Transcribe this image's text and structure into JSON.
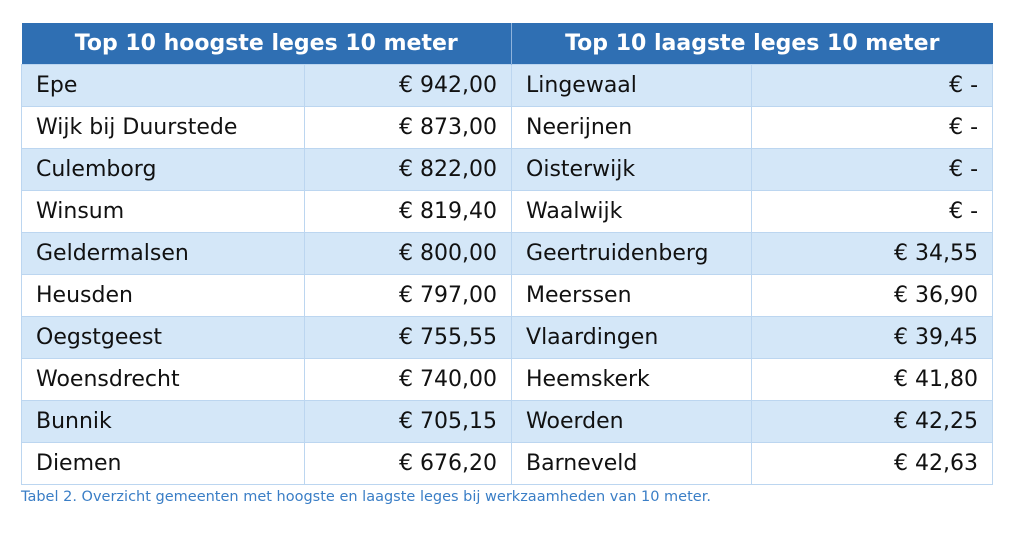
{
  "table": {
    "headers": [
      "Top 10 hoogste leges 10 meter",
      "Top 10 laagste leges 10 meter"
    ],
    "rows": [
      {
        "high_name": "Epe",
        "high_value": "€ 942,00",
        "low_name": "Lingewaal",
        "low_value": "€ -"
      },
      {
        "high_name": "Wijk bij Duurstede",
        "high_value": "€ 873,00",
        "low_name": "Neerijnen",
        "low_value": "€ -"
      },
      {
        "high_name": "Culemborg",
        "high_value": "€ 822,00",
        "low_name": "Oisterwijk",
        "low_value": "€ -"
      },
      {
        "high_name": "Winsum",
        "high_value": "€ 819,40",
        "low_name": "Waalwijk",
        "low_value": "€ -"
      },
      {
        "high_name": "Geldermalsen",
        "high_value": "€ 800,00",
        "low_name": "Geertruidenberg",
        "low_value": "€ 34,55"
      },
      {
        "high_name": "Heusden",
        "high_value": "€ 797,00",
        "low_name": "Meerssen",
        "low_value": "€ 36,90"
      },
      {
        "high_name": "Oegstgeest",
        "high_value": "€ 755,55",
        "low_name": "Vlaardingen",
        "low_value": "€ 39,45"
      },
      {
        "high_name": "Woensdrecht",
        "high_value": "€ 740,00",
        "low_name": "Heemskerk",
        "low_value": "€ 41,80"
      },
      {
        "high_name": "Bunnik",
        "high_value": "€ 705,15",
        "low_name": "Woerden",
        "low_value": "€ 42,25"
      },
      {
        "high_name": "Diemen",
        "high_value": "€ 676,20",
        "low_name": "Barneveld",
        "low_value": "€ 42,63"
      }
    ]
  },
  "caption": "Tabel 2. Overzicht gemeenten met hoogste en laagste leges bij werkzaamheden van 10 meter.",
  "colors": {
    "header_bg": "#2f6fb3",
    "header_text": "#ffffff",
    "band_bg": "#d4e7f8",
    "caption_text": "#3a7ec6"
  }
}
